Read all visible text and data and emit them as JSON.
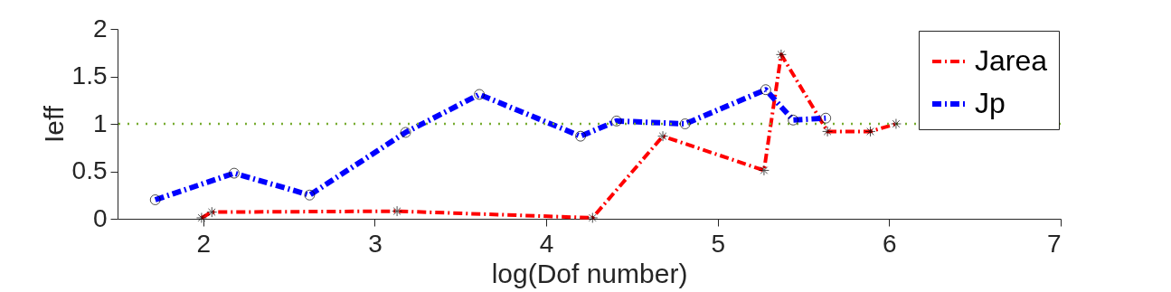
{
  "chart_data": {
    "type": "line",
    "xlabel": "log(Dof number)",
    "ylabel": "Ieff",
    "xlim": [
      1.5,
      7
    ],
    "xticks": [
      2,
      3,
      4,
      5,
      6,
      7
    ],
    "ylim": [
      0,
      2
    ],
    "yticks": [
      0,
      0.5,
      1,
      1.5,
      2
    ],
    "grid": false,
    "legend": "top right",
    "line_style": "dashed",
    "series": [
      {
        "name": "Jarea",
        "color": "#ff0000",
        "marker": "cross",
        "x": [
          1.99,
          2.05,
          3.13,
          4.27,
          4.68,
          5.27,
          5.37,
          5.64,
          5.89,
          6.04
        ],
        "values": [
          0.01,
          0.07,
          0.08,
          0.01,
          0.87,
          0.51,
          1.73,
          0.92,
          0.92,
          1.0
        ]
      },
      {
        "name": "Jp",
        "color": "#0000ff",
        "marker": "circle",
        "x": [
          1.72,
          2.18,
          2.62,
          3.18,
          3.61,
          4.2,
          4.41,
          4.81,
          5.28,
          5.44,
          5.63
        ],
        "values": [
          0.2,
          0.48,
          0.25,
          0.91,
          1.31,
          0.87,
          1.03,
          1.0,
          1.36,
          1.04,
          1.06
        ]
      }
    ],
    "ref_lines": [
      {
        "axis": "y",
        "value": 1,
        "color": "#77ac30",
        "line_style": "dotted"
      }
    ]
  }
}
